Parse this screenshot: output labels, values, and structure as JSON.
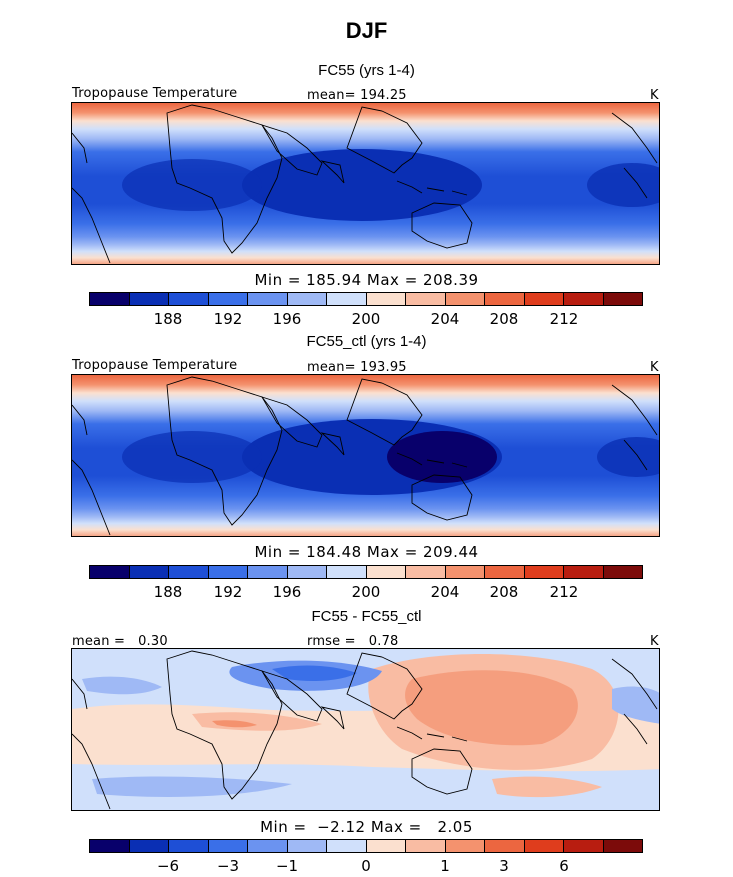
{
  "figure": {
    "season": "DJF",
    "variable_label": "Tropopause Temperature",
    "units": "K"
  },
  "colorbar_colors": [
    "#08006b",
    "#0a2fb4",
    "#1e4fd6",
    "#3a6fe8",
    "#6b93f0",
    "#9fb9f5",
    "#d0e0fb",
    "#fbe0cf",
    "#f9bca3",
    "#f4926e",
    "#ec6640",
    "#df3d1d",
    "#b81d10",
    "#7c0b0a"
  ],
  "panels": [
    {
      "title": "FC55 (yrs 1-4)",
      "left_label": "Tropopause Temperature",
      "center_label": "mean= 194.25",
      "right_label": "K",
      "stats": "Min = 185.94 Max = 208.39",
      "ticks": [
        "188",
        "192",
        "196",
        "200",
        "204",
        "208",
        "212"
      ]
    },
    {
      "title": "FC55_ctl (yrs 1-4)",
      "left_label": "Tropopause Temperature",
      "center_label": "mean= 193.95",
      "right_label": "K",
      "stats": "Min = 184.48 Max = 209.44",
      "ticks": [
        "188",
        "192",
        "196",
        "200",
        "204",
        "208",
        "212"
      ]
    },
    {
      "title": "FC55 - FC55_ctl",
      "left_label": "mean =   0.30",
      "center_label": "rmse =   0.78",
      "right_label": "K",
      "stats": "Min =  −2.12 Max =   2.05",
      "ticks": [
        "−6",
        "−3",
        "−1",
        "0",
        "1",
        "3",
        "6"
      ]
    }
  ]
}
